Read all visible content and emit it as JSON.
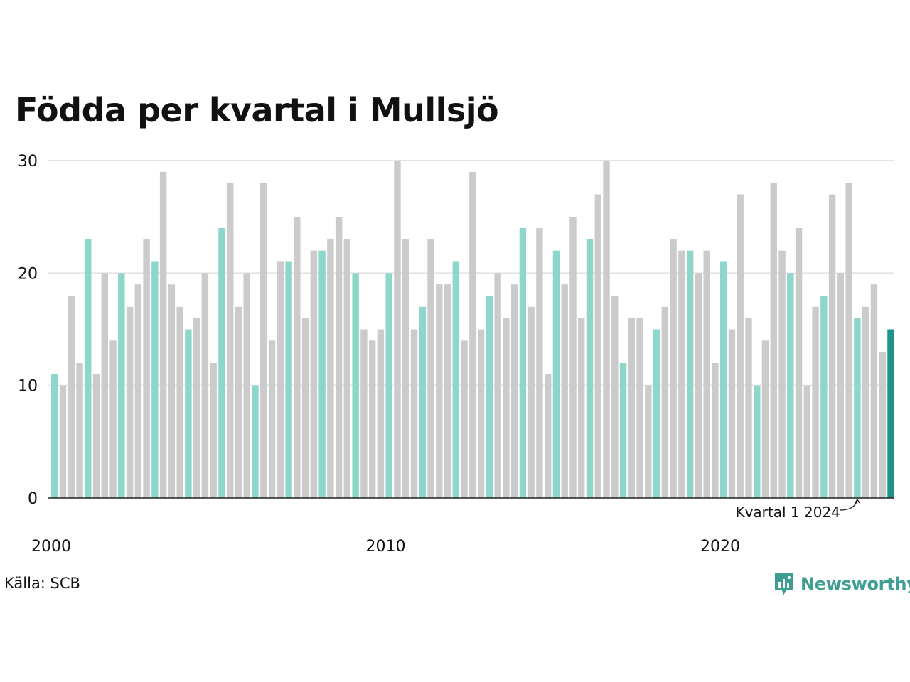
{
  "title": "Födda per kvartal i Mullsjö",
  "source": "Källa: SCB",
  "brand": "Newsworthy",
  "colors": {
    "highlight": "#8dd6cb",
    "other": "#cbcbcb",
    "latest": "#1e9488",
    "axis": "#222222",
    "grid": "#e3e3e3",
    "brand": "#3f9e93"
  },
  "chart_data": {
    "type": "bar",
    "title": "Födda per kvartal i Mullsjö",
    "xlabel": "",
    "ylabel": "",
    "ylim": [
      0,
      30
    ],
    "yticks": [
      0,
      10,
      20,
      30
    ],
    "xticks": [
      "2000",
      "2010",
      "2020"
    ],
    "grid": true,
    "annotation": "Kvartal 1 2024",
    "highlight_quarter": 1,
    "start_year": 2000,
    "series": [
      {
        "values": [
          11,
          10,
          18,
          12,
          23,
          11,
          20,
          14,
          20,
          17,
          19,
          23,
          21,
          29,
          19,
          17,
          15,
          16,
          20,
          12,
          24,
          28,
          17,
          20,
          10,
          28,
          14,
          21,
          21,
          25,
          16,
          22,
          22,
          23,
          25,
          23,
          20,
          15,
          14,
          15,
          20,
          30,
          23,
          15,
          17,
          23,
          19,
          19,
          21,
          14,
          29,
          15,
          18,
          20,
          16,
          19,
          24,
          17,
          24,
          11,
          22,
          19,
          25,
          16,
          23,
          27,
          30,
          18,
          12,
          16,
          16,
          10,
          15,
          17,
          23,
          22,
          22,
          20,
          22,
          12,
          21,
          15,
          27,
          16,
          10,
          14,
          28,
          22,
          20,
          24,
          10,
          17,
          18,
          27,
          20,
          28,
          16,
          17,
          19,
          13,
          15
        ]
      }
    ]
  }
}
